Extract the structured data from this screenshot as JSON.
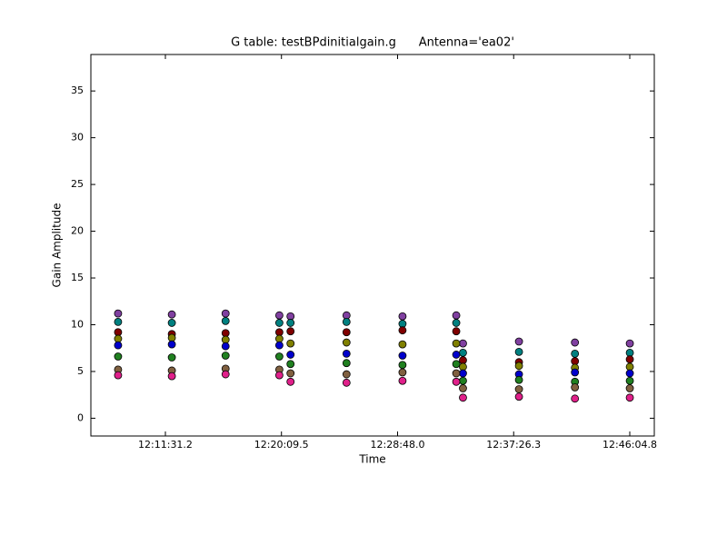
{
  "chart_data": {
    "type": "scatter",
    "title": "G table: testBPdinitialgain.g      Antenna='ea02'",
    "x_label": "Time",
    "y_label": "Gain Amplitude",
    "x": [
      43680,
      43920,
      44160,
      44400,
      44450,
      44700,
      44950,
      45190,
      45220,
      45470,
      45720,
      45965
    ],
    "series": [
      {
        "color": "#8040a0",
        "values": [
          11.2,
          11.1,
          11.2,
          11.0,
          10.9,
          11.0,
          10.9,
          11.0,
          8.0,
          8.2,
          8.1,
          8.0
        ]
      },
      {
        "color": "#008080",
        "values": [
          10.3,
          10.2,
          10.4,
          10.2,
          10.2,
          10.3,
          10.1,
          10.2,
          7.0,
          7.1,
          6.9,
          7.0
        ]
      },
      {
        "color": "#800000",
        "values": [
          9.2,
          9.0,
          9.1,
          9.2,
          9.3,
          9.2,
          9.4,
          9.3,
          6.2,
          6.0,
          6.1,
          6.3
        ]
      },
      {
        "color": "#808000",
        "values": [
          8.5,
          8.6,
          8.4,
          8.5,
          8.0,
          8.1,
          7.9,
          8.0,
          5.5,
          5.6,
          5.4,
          5.5
        ]
      },
      {
        "color": "#0000cc",
        "values": [
          7.8,
          7.9,
          7.7,
          7.8,
          6.8,
          6.9,
          6.7,
          6.8,
          4.8,
          4.7,
          4.9,
          4.8
        ]
      },
      {
        "color": "#208020",
        "values": [
          6.6,
          6.5,
          6.7,
          6.6,
          5.8,
          5.9,
          5.7,
          5.8,
          4.0,
          4.1,
          3.9,
          4.0
        ]
      },
      {
        "color": "#806040",
        "values": [
          5.2,
          5.1,
          5.3,
          5.2,
          4.8,
          4.7,
          4.9,
          4.8,
          3.2,
          3.1,
          3.3,
          3.2
        ]
      },
      {
        "color": "#e0208a",
        "values": [
          4.6,
          4.5,
          4.7,
          4.6,
          3.9,
          3.8,
          4.0,
          3.9,
          2.2,
          2.3,
          2.1,
          2.2
        ]
      }
    ],
    "xlim": [
      43558.5,
      46074.3
    ],
    "ylim": [
      -1.9,
      38.9
    ],
    "xticks": [
      {
        "value": 43891.2,
        "label": "12:11:31.2"
      },
      {
        "value": 44409.5,
        "label": "12:20:09.5"
      },
      {
        "value": 44928.0,
        "label": "12:28:48.0"
      },
      {
        "value": 45446.3,
        "label": "12:37:26.3"
      },
      {
        "value": 45964.8,
        "label": "12:46:04.8"
      }
    ],
    "yticks": [
      0,
      5,
      10,
      15,
      20,
      25,
      30,
      35
    ],
    "grid": false
  }
}
